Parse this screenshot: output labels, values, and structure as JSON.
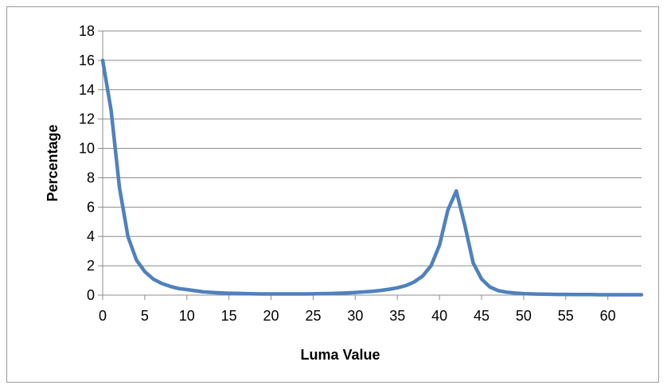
{
  "chart_data": {
    "type": "line",
    "title": "",
    "xlabel": "Luma Value",
    "ylabel": "Percentage",
    "xlim": [
      0,
      64
    ],
    "ylim": [
      0,
      18
    ],
    "x_ticks": [
      0,
      5,
      10,
      15,
      20,
      25,
      30,
      35,
      40,
      45,
      50,
      55,
      60
    ],
    "y_ticks": [
      0,
      2,
      4,
      6,
      8,
      10,
      12,
      14,
      16,
      18
    ],
    "grid": "horizontal",
    "legend": "none",
    "series": [
      {
        "color": "#4f81bd",
        "x": [
          0,
          1,
          2,
          3,
          4,
          5,
          6,
          7,
          8,
          9,
          10,
          11,
          12,
          13,
          14,
          15,
          16,
          17,
          18,
          19,
          20,
          21,
          22,
          23,
          24,
          25,
          26,
          27,
          28,
          29,
          30,
          31,
          32,
          33,
          34,
          35,
          36,
          37,
          38,
          39,
          40,
          41,
          42,
          43,
          44,
          45,
          46,
          47,
          48,
          49,
          50,
          51,
          52,
          53,
          54,
          55,
          56,
          57,
          58,
          59,
          60,
          61,
          62,
          63,
          64
        ],
        "values": [
          16.0,
          12.6,
          7.3,
          4.0,
          2.4,
          1.6,
          1.1,
          0.8,
          0.6,
          0.45,
          0.38,
          0.3,
          0.22,
          0.18,
          0.15,
          0.13,
          0.12,
          0.1,
          0.09,
          0.08,
          0.08,
          0.08,
          0.08,
          0.08,
          0.08,
          0.09,
          0.1,
          0.11,
          0.13,
          0.15,
          0.18,
          0.22,
          0.26,
          0.32,
          0.4,
          0.5,
          0.65,
          0.9,
          1.3,
          2.0,
          3.4,
          5.8,
          7.1,
          4.8,
          2.2,
          1.1,
          0.55,
          0.3,
          0.2,
          0.14,
          0.1,
          0.08,
          0.07,
          0.06,
          0.05,
          0.05,
          0.04,
          0.04,
          0.04,
          0.03,
          0.03,
          0.03,
          0.03,
          0.03,
          0.03
        ]
      }
    ]
  }
}
